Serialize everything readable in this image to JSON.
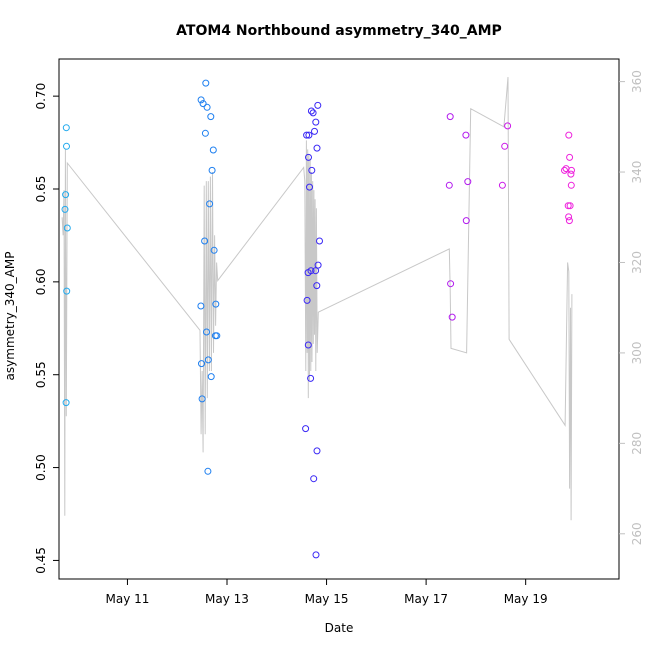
{
  "chart_data": {
    "type": "scatter",
    "title": "ATOM4 Northbound asymmetry_340_AMP",
    "xlabel": "Date",
    "ylabel": "asymmetry_340_AMP",
    "xlim": [
      "2023-05-09T15:00",
      "2023-05-20T21:00"
    ],
    "ylim": [
      0.44,
      0.72
    ],
    "y2lim": [
      250,
      365
    ],
    "grid": false,
    "x_ticks": [
      {
        "date": "2023-05-11",
        "label": "May 11"
      },
      {
        "date": "2023-05-13",
        "label": "May 13"
      },
      {
        "date": "2023-05-15",
        "label": "May 15"
      },
      {
        "date": "2023-05-17",
        "label": "May 17"
      },
      {
        "date": "2023-05-19",
        "label": "May 19"
      }
    ],
    "y_ticks": [
      0.45,
      0.5,
      0.55,
      0.6,
      0.65,
      0.7
    ],
    "y_tick_labels": [
      "0.45",
      "0.50",
      "0.55",
      "0.60",
      "0.65",
      "0.70"
    ],
    "y2_ticks": [
      260,
      280,
      300,
      320,
      340,
      360
    ],
    "colors": {
      "line": "#c8c8c8",
      "axis": "#000000",
      "right_axis": "#c0c0c0",
      "point_gradient": [
        "#22aaee",
        "#1b3df2",
        "#6a1bff",
        "#ee22dd"
      ]
    },
    "points": [
      {
        "x": "2023-05-09T18:30",
        "y": 0.683,
        "color": "#22aaee"
      },
      {
        "x": "2023-05-09T18:36",
        "y": 0.673,
        "color": "#22aaee"
      },
      {
        "x": "2023-05-09T18:12",
        "y": 0.647,
        "color": "#22aaee"
      },
      {
        "x": "2023-05-09T17:54",
        "y": 0.639,
        "color": "#22aaee"
      },
      {
        "x": "2023-05-09T19:00",
        "y": 0.629,
        "color": "#22aaee"
      },
      {
        "x": "2023-05-09T18:42",
        "y": 0.595,
        "color": "#22aaee"
      },
      {
        "x": "2023-05-09T18:24",
        "y": 0.535,
        "color": "#22aaee"
      },
      {
        "x": "2023-05-12T11:30",
        "y": 0.698,
        "color": "#1d7ff0"
      },
      {
        "x": "2023-05-12T12:30",
        "y": 0.696,
        "color": "#1d7ff0"
      },
      {
        "x": "2023-05-12T13:48",
        "y": 0.707,
        "color": "#1d7ff0"
      },
      {
        "x": "2023-05-12T14:24",
        "y": 0.694,
        "color": "#1d7ff0"
      },
      {
        "x": "2023-05-12T16:12",
        "y": 0.689,
        "color": "#1d7ff0"
      },
      {
        "x": "2023-05-12T13:36",
        "y": 0.68,
        "color": "#1d7ff0"
      },
      {
        "x": "2023-05-12T17:24",
        "y": 0.671,
        "color": "#1d7ff0"
      },
      {
        "x": "2023-05-12T16:48",
        "y": 0.66,
        "color": "#1d7ff0"
      },
      {
        "x": "2023-05-12T15:36",
        "y": 0.642,
        "color": "#1d7ff0"
      },
      {
        "x": "2023-05-12T13:12",
        "y": 0.622,
        "color": "#1d7ff0"
      },
      {
        "x": "2023-05-12T17:48",
        "y": 0.617,
        "color": "#1d7ff0"
      },
      {
        "x": "2023-05-12T11:24",
        "y": 0.587,
        "color": "#1d7ff0"
      },
      {
        "x": "2023-05-12T18:36",
        "y": 0.588,
        "color": "#1d7ff0"
      },
      {
        "x": "2023-05-12T14:06",
        "y": 0.573,
        "color": "#1d7ff0"
      },
      {
        "x": "2023-05-12T18:24",
        "y": 0.571,
        "color": "#1d7ff0"
      },
      {
        "x": "2023-05-12T19:06",
        "y": 0.571,
        "color": "#1d7ff0"
      },
      {
        "x": "2023-05-12T15:00",
        "y": 0.558,
        "color": "#1d7ff0"
      },
      {
        "x": "2023-05-12T11:42",
        "y": 0.556,
        "color": "#1d7ff0"
      },
      {
        "x": "2023-05-12T16:24",
        "y": 0.549,
        "color": "#1d7ff0"
      },
      {
        "x": "2023-05-12T12:00",
        "y": 0.537,
        "color": "#1d7ff0"
      },
      {
        "x": "2023-05-12T14:48",
        "y": 0.498,
        "color": "#1d7ff0"
      },
      {
        "x": "2023-05-14T16:42",
        "y": 0.692,
        "color": "#3a28f5"
      },
      {
        "x": "2023-05-14T17:30",
        "y": 0.691,
        "color": "#3a28f5"
      },
      {
        "x": "2023-05-14T19:48",
        "y": 0.695,
        "color": "#3a28f5"
      },
      {
        "x": "2023-05-14T18:48",
        "y": 0.686,
        "color": "#3a28f5"
      },
      {
        "x": "2023-05-14T18:12",
        "y": 0.681,
        "color": "#3a28f5"
      },
      {
        "x": "2023-05-14T14:24",
        "y": 0.679,
        "color": "#3a28f5"
      },
      {
        "x": "2023-05-14T15:30",
        "y": 0.679,
        "color": "#3a28f5"
      },
      {
        "x": "2023-05-14T19:24",
        "y": 0.672,
        "color": "#3a28f5"
      },
      {
        "x": "2023-05-14T15:18",
        "y": 0.667,
        "color": "#3a28f5"
      },
      {
        "x": "2023-05-14T16:54",
        "y": 0.66,
        "color": "#3a28f5"
      },
      {
        "x": "2023-05-14T15:48",
        "y": 0.651,
        "color": "#3a28f5"
      },
      {
        "x": "2023-05-14T20:36",
        "y": 0.622,
        "color": "#3a28f5"
      },
      {
        "x": "2023-05-14T19:54",
        "y": 0.609,
        "color": "#3a28f5"
      },
      {
        "x": "2023-05-14T18:42",
        "y": 0.606,
        "color": "#3a28f5"
      },
      {
        "x": "2023-05-14T15:06",
        "y": 0.605,
        "color": "#3a28f5"
      },
      {
        "x": "2023-05-14T16:30",
        "y": 0.606,
        "color": "#3a28f5"
      },
      {
        "x": "2023-05-14T19:18",
        "y": 0.598,
        "color": "#3a28f5"
      },
      {
        "x": "2023-05-14T14:36",
        "y": 0.59,
        "color": "#3a28f5"
      },
      {
        "x": "2023-05-14T15:12",
        "y": 0.566,
        "color": "#3a28f5"
      },
      {
        "x": "2023-05-14T16:18",
        "y": 0.548,
        "color": "#3a28f5"
      },
      {
        "x": "2023-05-14T13:54",
        "y": 0.521,
        "color": "#3a28f5"
      },
      {
        "x": "2023-05-14T19:24",
        "y": 0.509,
        "color": "#3a28f5"
      },
      {
        "x": "2023-05-14T17:48",
        "y": 0.494,
        "color": "#3a28f5"
      },
      {
        "x": "2023-05-14T18:54",
        "y": 0.453,
        "color": "#3a28f5"
      },
      {
        "x": "2023-05-17T11:36",
        "y": 0.689,
        "color": "#b21aee"
      },
      {
        "x": "2023-05-17T19:12",
        "y": 0.679,
        "color": "#b21aee"
      },
      {
        "x": "2023-05-17T11:12",
        "y": 0.652,
        "color": "#b21aee"
      },
      {
        "x": "2023-05-17T20:06",
        "y": 0.654,
        "color": "#b21aee"
      },
      {
        "x": "2023-05-17T19:24",
        "y": 0.633,
        "color": "#b21aee"
      },
      {
        "x": "2023-05-17T11:48",
        "y": 0.599,
        "color": "#b21aee"
      },
      {
        "x": "2023-05-17T12:36",
        "y": 0.581,
        "color": "#b21aee"
      },
      {
        "x": "2023-05-18T15:18",
        "y": 0.684,
        "color": "#cb18e8"
      },
      {
        "x": "2023-05-18T13:54",
        "y": 0.673,
        "color": "#cb18e8"
      },
      {
        "x": "2023-05-18T12:48",
        "y": 0.652,
        "color": "#cb18e8"
      },
      {
        "x": "2023-05-19T20:48",
        "y": 0.679,
        "color": "#ee22dd"
      },
      {
        "x": "2023-05-19T21:12",
        "y": 0.667,
        "color": "#ee22dd"
      },
      {
        "x": "2023-05-19T18:42",
        "y": 0.66,
        "color": "#ee22dd"
      },
      {
        "x": "2023-05-19T19:30",
        "y": 0.661,
        "color": "#ee22dd"
      },
      {
        "x": "2023-05-19T22:06",
        "y": 0.66,
        "color": "#ee22dd"
      },
      {
        "x": "2023-05-19T21:48",
        "y": 0.658,
        "color": "#ee22dd"
      },
      {
        "x": "2023-05-19T22:00",
        "y": 0.652,
        "color": "#ee22dd"
      },
      {
        "x": "2023-05-19T20:30",
        "y": 0.641,
        "color": "#ee22dd"
      },
      {
        "x": "2023-05-19T21:24",
        "y": 0.641,
        "color": "#ee22dd"
      },
      {
        "x": "2023-05-19T20:42",
        "y": 0.635,
        "color": "#ee22dd"
      },
      {
        "x": "2023-05-19T21:06",
        "y": 0.633,
        "color": "#ee22dd"
      }
    ],
    "line_series_right_axis": [
      [
        "2023-05-09T16:30",
        330
      ],
      [
        "2023-05-09T17:00",
        326
      ],
      [
        "2023-05-09T17:24",
        336
      ],
      [
        "2023-05-09T17:48",
        264
      ],
      [
        "2023-05-09T18:06",
        345
      ],
      [
        "2023-05-09T18:30",
        286
      ],
      [
        "2023-05-09T19:00",
        342
      ],
      [
        "2023-05-12T11:00",
        305
      ],
      [
        "2023-05-12T11:30",
        282
      ],
      [
        "2023-05-12T12:00",
        296
      ],
      [
        "2023-05-12T12:30",
        278
      ],
      [
        "2023-05-12T13:00",
        337
      ],
      [
        "2023-05-12T13:30",
        282
      ],
      [
        "2023-05-12T14:00",
        338
      ],
      [
        "2023-05-12T14:30",
        290
      ],
      [
        "2023-05-12T15:00",
        338
      ],
      [
        "2023-05-12T15:30",
        296
      ],
      [
        "2023-05-12T16:00",
        339
      ],
      [
        "2023-05-12T16:30",
        296
      ],
      [
        "2023-05-12T17:00",
        340
      ],
      [
        "2023-05-12T17:30",
        300
      ],
      [
        "2023-05-12T18:00",
        326
      ],
      [
        "2023-05-12T18:30",
        306
      ],
      [
        "2023-05-12T19:00",
        320
      ],
      [
        "2023-05-12T19:30",
        316
      ],
      [
        "2023-05-14T13:00",
        341
      ],
      [
        "2023-05-14T13:30",
        338
      ],
      [
        "2023-05-14T14:00",
        296
      ],
      [
        "2023-05-14T14:18",
        347
      ],
      [
        "2023-05-14T14:36",
        300
      ],
      [
        "2023-05-14T14:54",
        345
      ],
      [
        "2023-05-14T15:12",
        290
      ],
      [
        "2023-05-14T15:30",
        344
      ],
      [
        "2023-05-14T15:48",
        294
      ],
      [
        "2023-05-14T16:06",
        343
      ],
      [
        "2023-05-14T16:24",
        296
      ],
      [
        "2023-05-14T16:42",
        340
      ],
      [
        "2023-05-14T17:00",
        298
      ],
      [
        "2023-05-14T17:18",
        338
      ],
      [
        "2023-05-14T17:36",
        302
      ],
      [
        "2023-05-14T17:54",
        336
      ],
      [
        "2023-05-14T18:12",
        304
      ],
      [
        "2023-05-14T18:30",
        334
      ],
      [
        "2023-05-14T18:48",
        296
      ],
      [
        "2023-05-14T19:06",
        332
      ],
      [
        "2023-05-14T19:30",
        300
      ],
      [
        "2023-05-14T20:00",
        309
      ],
      [
        "2023-05-17T11:12",
        323
      ],
      [
        "2023-05-17T11:36",
        314
      ],
      [
        "2023-05-17T12:00",
        301
      ],
      [
        "2023-05-17T19:30",
        300
      ],
      [
        "2023-05-17T21:30",
        354
      ],
      [
        "2023-05-18T13:30",
        350
      ],
      [
        "2023-05-18T15:30",
        361
      ],
      [
        "2023-05-18T16:00",
        303
      ],
      [
        "2023-05-19T19:00",
        284
      ],
      [
        "2023-05-19T20:12",
        320
      ],
      [
        "2023-05-19T20:48",
        318
      ],
      [
        "2023-05-19T21:12",
        270
      ],
      [
        "2023-05-19T21:36",
        310
      ],
      [
        "2023-05-19T21:54",
        263
      ],
      [
        "2023-05-19T22:18",
        313
      ]
    ]
  }
}
